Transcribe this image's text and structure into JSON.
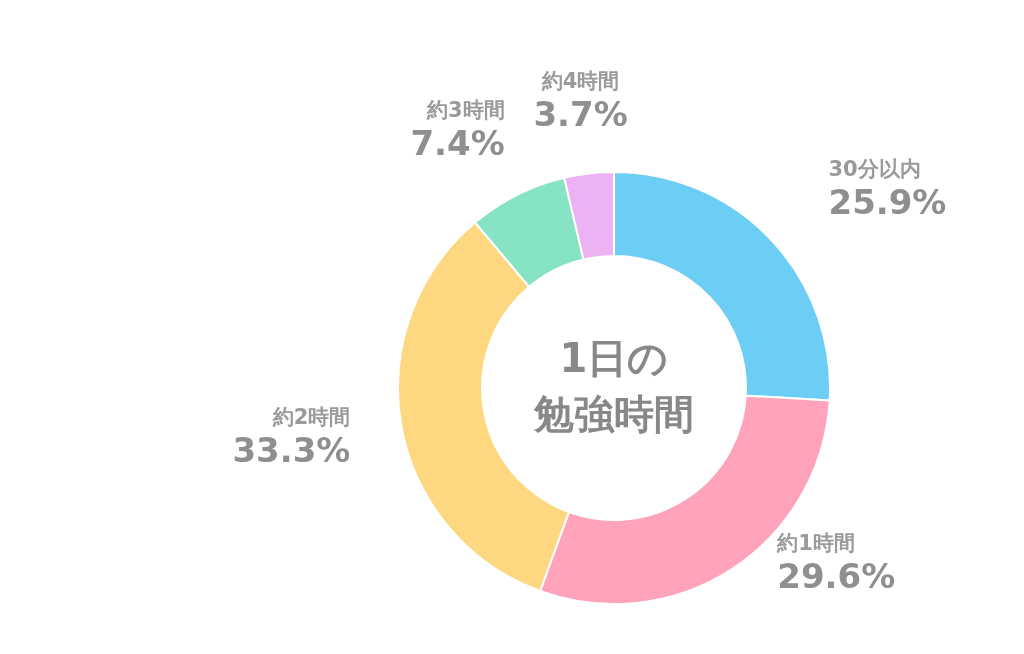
{
  "chart_data": {
    "type": "donut",
    "title": "1日の勉強時間",
    "categories": [
      "30分以内",
      "約1時間",
      "約2時間",
      "約3時間",
      "約4時間"
    ],
    "values": [
      25.9,
      29.6,
      33.3,
      7.4,
      3.7
    ],
    "value_labels": [
      "25.9%",
      "29.6%",
      "33.3%",
      "7.4%",
      "3.7%"
    ],
    "colors": [
      "#6ccdf5",
      "#fea3ba",
      "#fdd881",
      "#86e3c3",
      "#ecb2f4"
    ]
  }
}
